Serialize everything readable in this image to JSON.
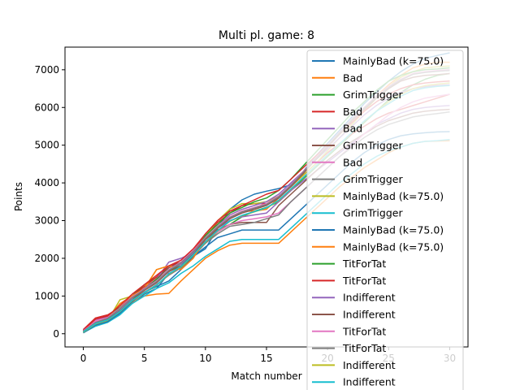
{
  "chart_data": {
    "type": "line",
    "title": "Multi pl. game: 8",
    "xlabel": "Match number",
    "ylabel": "Points",
    "xlim": [
      -1.5,
      31.5
    ],
    "ylim": [
      -350,
      7600
    ],
    "xticks": [
      0,
      5,
      10,
      15,
      20,
      25,
      30
    ],
    "yticks": [
      0,
      1000,
      2000,
      3000,
      4000,
      5000,
      6000,
      7000
    ],
    "grid": false,
    "legend_position": "upper-right",
    "x": [
      0,
      1,
      2,
      3,
      4,
      5,
      6,
      7,
      8,
      9,
      10,
      11,
      12,
      13,
      14,
      15,
      16,
      17,
      18,
      19,
      20,
      21,
      22,
      23,
      24,
      25,
      26,
      27,
      28,
      29,
      30
    ],
    "series": [
      {
        "name": "MainlyBad (k=75.0)",
        "color": "#1f77b4",
        "values": [
          60,
          230,
          330,
          520,
          800,
          1050,
          1200,
          1600,
          1750,
          2050,
          2250,
          2800,
          3300,
          3550,
          3700,
          3780,
          3850,
          3950,
          4300,
          4700,
          5050,
          5400,
          5750,
          6100,
          6400,
          6700,
          6950,
          7150,
          7300,
          7380,
          7450
        ]
      },
      {
        "name": "Bad",
        "color": "#ff7f0e",
        "values": [
          50,
          280,
          350,
          600,
          820,
          1000,
          1050,
          1070,
          1400,
          1700,
          2000,
          2200,
          2350,
          2400,
          2400,
          2400,
          2400,
          2700,
          3000,
          3300,
          3600,
          3900,
          4150,
          4400,
          4600,
          4800,
          4950,
          5050,
          5100,
          5110,
          5120
        ]
      },
      {
        "name": "GrimTrigger",
        "color": "#2ca02c",
        "values": [
          90,
          380,
          450,
          650,
          1000,
          1300,
          1500,
          1750,
          1900,
          2100,
          2400,
          2700,
          2900,
          3100,
          3250,
          3350,
          3500,
          3800,
          4100,
          4400,
          4700,
          5000,
          5300,
          5600,
          5900,
          6200,
          6400,
          6600,
          6750,
          6850,
          6900
        ]
      },
      {
        "name": "Bad",
        "color": "#d62728",
        "values": [
          110,
          420,
          500,
          700,
          1000,
          1250,
          1500,
          1800,
          1900,
          2200,
          2600,
          2950,
          3200,
          3400,
          3450,
          3450,
          3600,
          3900,
          4200,
          4500,
          4800,
          5050,
          5300,
          5500,
          5700,
          5850,
          5950,
          6050,
          6150,
          6250,
          6350
        ]
      },
      {
        "name": "Bad",
        "color": "#9467bd",
        "values": [
          100,
          360,
          450,
          680,
          950,
          1200,
          1450,
          1900,
          2000,
          2150,
          2500,
          2800,
          3000,
          3100,
          3150,
          3200,
          3500,
          3800,
          4050,
          4300,
          4550,
          4800,
          5050,
          5300,
          5550,
          5700,
          5850,
          5950,
          6000,
          6030,
          6050
        ]
      },
      {
        "name": "GrimTrigger",
        "color": "#8c564b",
        "values": [
          80,
          300,
          400,
          650,
          900,
          1200,
          1450,
          1750,
          1900,
          2150,
          2500,
          2750,
          2900,
          2950,
          2950,
          2950,
          3400,
          3700,
          4000,
          4300,
          4600,
          4850,
          5100,
          5300,
          5500,
          5650,
          5750,
          5850,
          5900,
          5930,
          5950
        ]
      },
      {
        "name": "Bad",
        "color": "#e377c2",
        "values": [
          70,
          350,
          420,
          620,
          900,
          1150,
          1350,
          1650,
          1800,
          2100,
          2450,
          2700,
          2900,
          3000,
          3050,
          3100,
          3200,
          3500,
          3800,
          4100,
          4400,
          4700,
          5000,
          5300,
          5550,
          5800,
          6000,
          6150,
          6250,
          6300,
          6350
        ]
      },
      {
        "name": "GrimTrigger",
        "color": "#7f7f7f",
        "values": [
          60,
          300,
          380,
          600,
          850,
          1100,
          1300,
          1550,
          1750,
          2050,
          2400,
          2650,
          2850,
          2900,
          2950,
          3050,
          3150,
          3500,
          3800,
          4100,
          4400,
          4700,
          4950,
          5200,
          5400,
          5550,
          5650,
          5750,
          5800,
          5840,
          5880
        ]
      },
      {
        "name": "MainlyBad (k=75.0)",
        "color": "#bcbd22",
        "values": [
          40,
          250,
          350,
          900,
          1000,
          1200,
          1700,
          1800,
          1700,
          2100,
          2600,
          3000,
          3300,
          3450,
          3450,
          3500,
          3650,
          3900,
          4200,
          4500,
          4850,
          5200,
          5550,
          5900,
          6250,
          6550,
          6800,
          6950,
          7050,
          7080,
          7100
        ]
      },
      {
        "name": "GrimTrigger",
        "color": "#17becf",
        "values": [
          30,
          200,
          300,
          500,
          800,
          1000,
          1200,
          1350,
          1600,
          1800,
          2050,
          2250,
          2450,
          2500,
          2500,
          2500,
          2500,
          2800,
          3100,
          3400,
          3700,
          4000,
          4250,
          4500,
          4700,
          4850,
          4950,
          5050,
          5100,
          5120,
          5150
        ]
      },
      {
        "name": "MainlyBad (k=75.0)",
        "color": "#1f77b4",
        "values": [
          20,
          230,
          320,
          550,
          850,
          1100,
          1250,
          1400,
          1700,
          2050,
          2300,
          2550,
          2650,
          2750,
          2750,
          2750,
          2750,
          3050,
          3350,
          3650,
          3950,
          4250,
          4550,
          4800,
          5000,
          5150,
          5250,
          5300,
          5330,
          5350,
          5360
        ]
      },
      {
        "name": "MainlyBad (k=75.0)",
        "color": "#ff7f0e",
        "values": [
          80,
          300,
          400,
          800,
          1000,
          1200,
          1700,
          1800,
          1700,
          2000,
          2500,
          2800,
          3100,
          3250,
          3250,
          3300,
          3600,
          3900,
          4250,
          4600,
          4950,
          5300,
          5650,
          6000,
          6300,
          6600,
          6850,
          7050,
          7150,
          7200,
          7200
        ]
      },
      {
        "name": "TitForTat",
        "color": "#2ca02c",
        "values": [
          70,
          320,
          420,
          700,
          950,
          1150,
          1450,
          1650,
          1850,
          2100,
          2600,
          2900,
          3200,
          3350,
          3500,
          3600,
          3800,
          4100,
          4450,
          4800,
          5150,
          5500,
          5850,
          6150,
          6450,
          6700,
          6850,
          6950,
          7000,
          7020,
          7050
        ]
      },
      {
        "name": "TitForTat",
        "color": "#d62728",
        "values": [
          90,
          390,
          470,
          750,
          1050,
          1300,
          1550,
          1800,
          1950,
          2250,
          2650,
          3000,
          3250,
          3400,
          3550,
          3700,
          3800,
          4100,
          4400,
          4700,
          5000,
          5300,
          5600,
          5900,
          6150,
          6350,
          6500,
          6600,
          6650,
          6680,
          6700
        ]
      },
      {
        "name": "Indifferent",
        "color": "#9467bd",
        "values": [
          60,
          310,
          400,
          650,
          950,
          1200,
          1400,
          1700,
          1850,
          2150,
          2550,
          2850,
          3150,
          3300,
          3400,
          3500,
          3700,
          4000,
          4300,
          4600,
          4900,
          5200,
          5500,
          5800,
          6050,
          6250,
          6400,
          6500,
          6550,
          6580,
          6600
        ]
      },
      {
        "name": "Indifferent",
        "color": "#8c564b",
        "values": [
          50,
          280,
          380,
          600,
          900,
          1150,
          1350,
          1650,
          1800,
          2100,
          2500,
          2800,
          3050,
          3200,
          3300,
          3400,
          3600,
          3900,
          4250,
          4600,
          4950,
          5300,
          5650,
          5950,
          6250,
          6500,
          6700,
          6800,
          6850,
          6870,
          6900
        ]
      },
      {
        "name": "TitForTat",
        "color": "#e377c2",
        "values": [
          70,
          330,
          430,
          680,
          980,
          1180,
          1400,
          1700,
          1900,
          2200,
          2550,
          2850,
          3100,
          3250,
          3350,
          3450,
          3650,
          3950,
          4300,
          4650,
          5000,
          5350,
          5700,
          6000,
          6300,
          6550,
          6750,
          6900,
          6950,
          6980,
          7000
        ]
      },
      {
        "name": "TitForTat",
        "color": "#7f7f7f",
        "values": [
          60,
          300,
          410,
          660,
          960,
          1170,
          1380,
          1680,
          1880,
          2180,
          2530,
          2830,
          3080,
          3230,
          3330,
          3430,
          3630,
          3930,
          4280,
          4630,
          4980,
          5330,
          5680,
          5980,
          6280,
          6530,
          6730,
          6880,
          6930,
          6960,
          6980
        ]
      },
      {
        "name": "Indifferent",
        "color": "#bcbd22",
        "values": [
          40,
          260,
          360,
          580,
          880,
          1080,
          1280,
          1580,
          1780,
          2080,
          2430,
          2730,
          2980,
          3130,
          3230,
          3330,
          3530,
          3830,
          4130,
          4430,
          4730,
          5030,
          5330,
          5630,
          5900,
          6150,
          6350,
          6500,
          6580,
          6620,
          6650
        ]
      },
      {
        "name": "Indifferent",
        "color": "#17becf",
        "values": [
          50,
          270,
          370,
          590,
          890,
          1090,
          1290,
          1590,
          1790,
          2090,
          2440,
          2740,
          2990,
          3140,
          3240,
          3340,
          3540,
          3840,
          4140,
          4440,
          4740,
          5040,
          5340,
          5640,
          5900,
          6100,
          6300,
          6450,
          6520,
          6560,
          6580
        ]
      }
    ]
  }
}
